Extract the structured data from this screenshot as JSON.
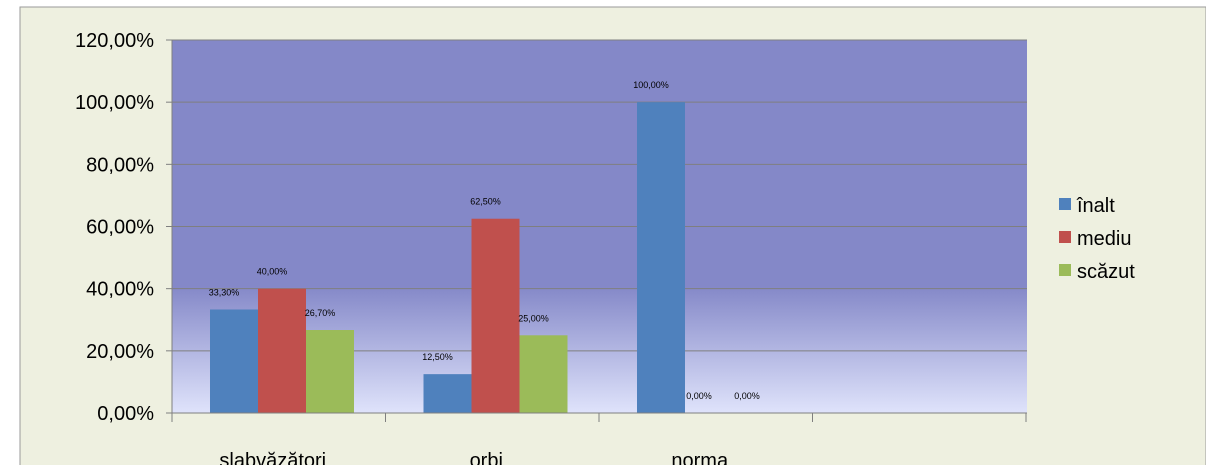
{
  "chart_data": {
    "type": "bar",
    "categories": [
      "slabvăzători",
      "orbi",
      "norma"
    ],
    "series": [
      {
        "name": "înalt",
        "values": [
          33.3,
          12.5,
          100.0
        ],
        "labels": [
          "33,30%",
          "12,50%",
          "100,00%"
        ]
      },
      {
        "name": "mediu",
        "values": [
          40.0,
          62.5,
          0.0
        ],
        "labels": [
          "40,00%",
          "62,50%",
          "0,00%"
        ]
      },
      {
        "name": "scăzut",
        "values": [
          26.7,
          25.0,
          0.0
        ],
        "labels": [
          "26,70%",
          "25,00%",
          "0,00%"
        ]
      }
    ],
    "y_ticks": [
      "0,00%",
      "20,00%",
      "40,00%",
      "60,00%",
      "80,00%",
      "100,00%",
      "120,00%"
    ],
    "ylim": [
      0,
      120
    ],
    "title": "",
    "xlabel": "",
    "ylabel": "",
    "grid": true,
    "legend_position": "right",
    "colors": {
      "înalt": "#4f81bd",
      "mediu": "#c0504d",
      "scăzut": "#9bbb59",
      "plot_top": "#8488c8",
      "plot_bottom": "#dfe3fb",
      "outer_background": "#eef0e0"
    }
  }
}
